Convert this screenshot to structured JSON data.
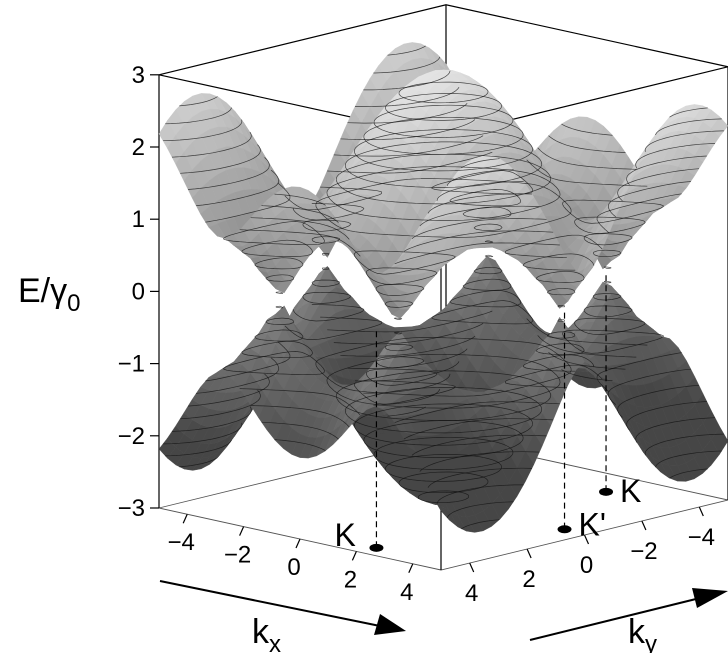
{
  "chart_data": {
    "type": "surface3d",
    "title": "",
    "xlabel": "k",
    "xlabel_sub": "x",
    "ylabel": "k",
    "ylabel_sub": "y",
    "zlabel": "E/γ",
    "zlabel_sub": "0",
    "x_ticks": [
      "−4",
      "−2",
      "0",
      "2",
      "4"
    ],
    "y_ticks": [
      "4",
      "2",
      "0",
      "−2",
      "−4"
    ],
    "z_ticks": [
      "3",
      "2",
      "1",
      "0",
      "−1",
      "−2",
      "−3"
    ],
    "xlim": [
      -5,
      5
    ],
    "ylim": [
      -5,
      5
    ],
    "zlim": [
      -3,
      3
    ],
    "series": [
      {
        "name": "",
        "branch": "upper",
        "values_desc": "E = +|1 + 2cos(kx/2)e^{i ky·√3/2}|"
      },
      {
        "name": "",
        "branch": "lower",
        "values_desc": "E = −|1 + 2cos(kx/2)e^{i ky·√3/2}|"
      }
    ],
    "annotations": [
      {
        "label": "K",
        "position": "left"
      },
      {
        "label": "K'",
        "position": "center"
      },
      {
        "label": "K",
        "position": "right"
      }
    ],
    "colors": {
      "surface_light": "#f0f0f0",
      "surface_dark": "#5a5a5a",
      "contour": "#111111"
    }
  }
}
